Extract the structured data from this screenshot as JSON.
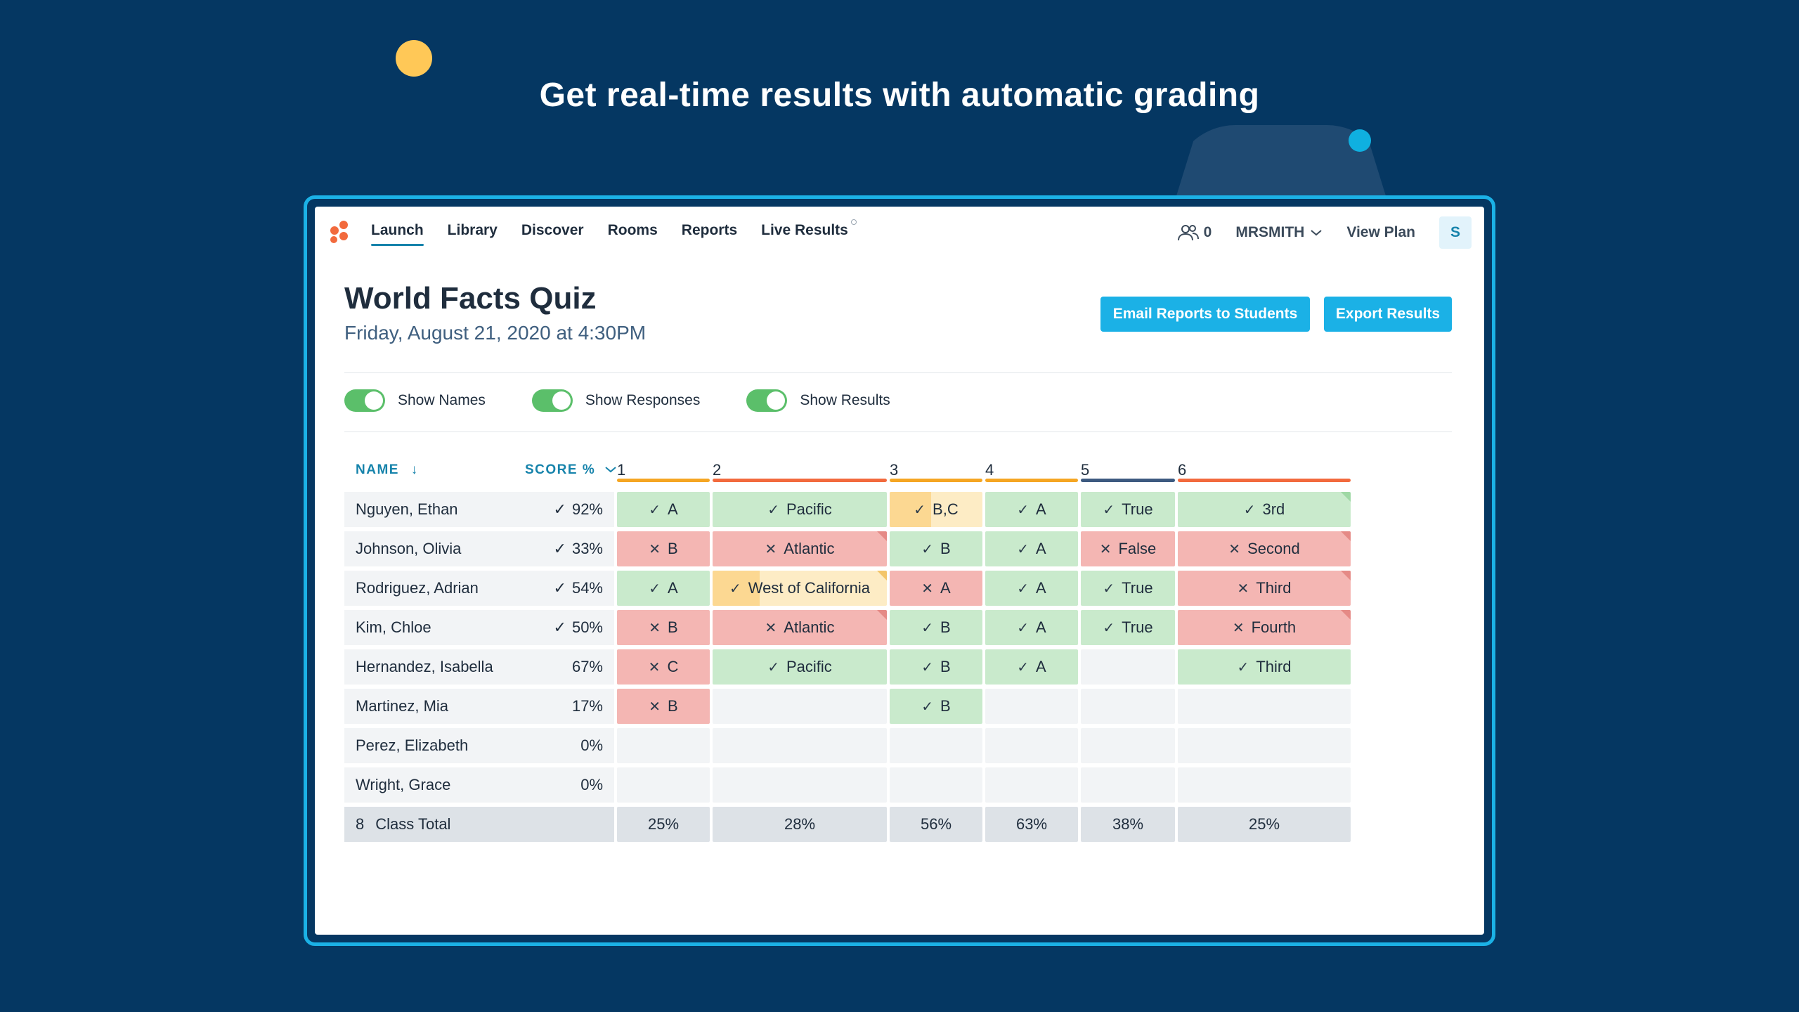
{
  "headline": "Get real-time results with automatic grading",
  "nav": {
    "items": [
      {
        "label": "Launch",
        "active": true
      },
      {
        "label": "Library",
        "active": false
      },
      {
        "label": "Discover",
        "active": false
      },
      {
        "label": "Rooms",
        "active": false
      },
      {
        "label": "Reports",
        "active": false
      },
      {
        "label": "Live Results",
        "active": false
      }
    ],
    "users_count": "0",
    "username": "MRSMITH",
    "view_plan": "View Plan",
    "avatar_initial": "S"
  },
  "quiz": {
    "title": "World Facts Quiz",
    "subtitle": "Friday, August 21, 2020 at 4:30PM"
  },
  "buttons": {
    "email": "Email Reports to Students",
    "export": "Export Results"
  },
  "toggles": [
    {
      "label": "Show Names",
      "on": true
    },
    {
      "label": "Show Responses",
      "on": true
    },
    {
      "label": "Show Results",
      "on": true
    }
  ],
  "table": {
    "name_header": "NAME",
    "score_header": "SCORE %",
    "questions": [
      {
        "num": "1",
        "color": "#f5a623"
      },
      {
        "num": "2",
        "color": "#f26a3d"
      },
      {
        "num": "3",
        "color": "#f5a623"
      },
      {
        "num": "4",
        "color": "#f5a623"
      },
      {
        "num": "5",
        "color": "#3d5a80"
      },
      {
        "num": "6",
        "color": "#f26a3d"
      }
    ],
    "rows": [
      {
        "name": "Nguyen, Ethan",
        "score": "92%",
        "check": true,
        "cells": [
          {
            "t": "A",
            "s": "green"
          },
          {
            "t": "Pacific",
            "s": "green"
          },
          {
            "t": "B,C",
            "s": "partial",
            "fill": 0.45
          },
          {
            "t": "A",
            "s": "green"
          },
          {
            "t": "True",
            "s": "green"
          },
          {
            "t": "3rd",
            "s": "green",
            "corner": "green"
          }
        ]
      },
      {
        "name": "Johnson, Olivia",
        "score": "33%",
        "check": true,
        "cells": [
          {
            "t": "B",
            "s": "red"
          },
          {
            "t": "Atlantic",
            "s": "red",
            "corner": "red"
          },
          {
            "t": "B",
            "s": "green"
          },
          {
            "t": "A",
            "s": "green"
          },
          {
            "t": "False",
            "s": "red"
          },
          {
            "t": "Second",
            "s": "red",
            "corner": "red"
          }
        ]
      },
      {
        "name": "Rodriguez, Adrian",
        "score": "54%",
        "check": true,
        "cells": [
          {
            "t": "A",
            "s": "green"
          },
          {
            "t": "West of California",
            "s": "partial",
            "fill": 0.27,
            "corner": "yellow"
          },
          {
            "t": "A",
            "s": "red"
          },
          {
            "t": "A",
            "s": "green"
          },
          {
            "t": "True",
            "s": "green"
          },
          {
            "t": "Third",
            "s": "red",
            "corner": "red"
          }
        ]
      },
      {
        "name": "Kim, Chloe",
        "score": "50%",
        "check": true,
        "cells": [
          {
            "t": "B",
            "s": "red"
          },
          {
            "t": "Atlantic",
            "s": "red",
            "corner": "red"
          },
          {
            "t": "B",
            "s": "green"
          },
          {
            "t": "A",
            "s": "green"
          },
          {
            "t": "True",
            "s": "green"
          },
          {
            "t": "Fourth",
            "s": "red",
            "corner": "red"
          }
        ]
      },
      {
        "name": "Hernandez, Isabella",
        "score": "67%",
        "check": false,
        "cells": [
          {
            "t": "C",
            "s": "red"
          },
          {
            "t": "Pacific",
            "s": "green"
          },
          {
            "t": "B",
            "s": "green"
          },
          {
            "t": "A",
            "s": "green"
          },
          {
            "t": "",
            "s": "empty"
          },
          {
            "t": "Third",
            "s": "green"
          }
        ]
      },
      {
        "name": "Martinez, Mia",
        "score": "17%",
        "check": false,
        "cells": [
          {
            "t": "B",
            "s": "red"
          },
          {
            "t": "",
            "s": "empty"
          },
          {
            "t": "B",
            "s": "green"
          },
          {
            "t": "",
            "s": "empty"
          },
          {
            "t": "",
            "s": "empty"
          },
          {
            "t": "",
            "s": "empty"
          }
        ]
      },
      {
        "name": "Perez, Elizabeth",
        "score": "0%",
        "check": false,
        "cells": [
          {
            "t": "",
            "s": "empty"
          },
          {
            "t": "",
            "s": "empty"
          },
          {
            "t": "",
            "s": "empty"
          },
          {
            "t": "",
            "s": "empty"
          },
          {
            "t": "",
            "s": "empty"
          },
          {
            "t": "",
            "s": "empty"
          }
        ]
      },
      {
        "name": "Wright, Grace",
        "score": "0%",
        "check": false,
        "cells": [
          {
            "t": "",
            "s": "empty"
          },
          {
            "t": "",
            "s": "empty"
          },
          {
            "t": "",
            "s": "empty"
          },
          {
            "t": "",
            "s": "empty"
          },
          {
            "t": "",
            "s": "empty"
          },
          {
            "t": "",
            "s": "empty"
          }
        ]
      }
    ],
    "total": {
      "count": "8",
      "label": "Class Total",
      "values": [
        "25%",
        "28%",
        "56%",
        "63%",
        "38%",
        "25%"
      ]
    }
  }
}
